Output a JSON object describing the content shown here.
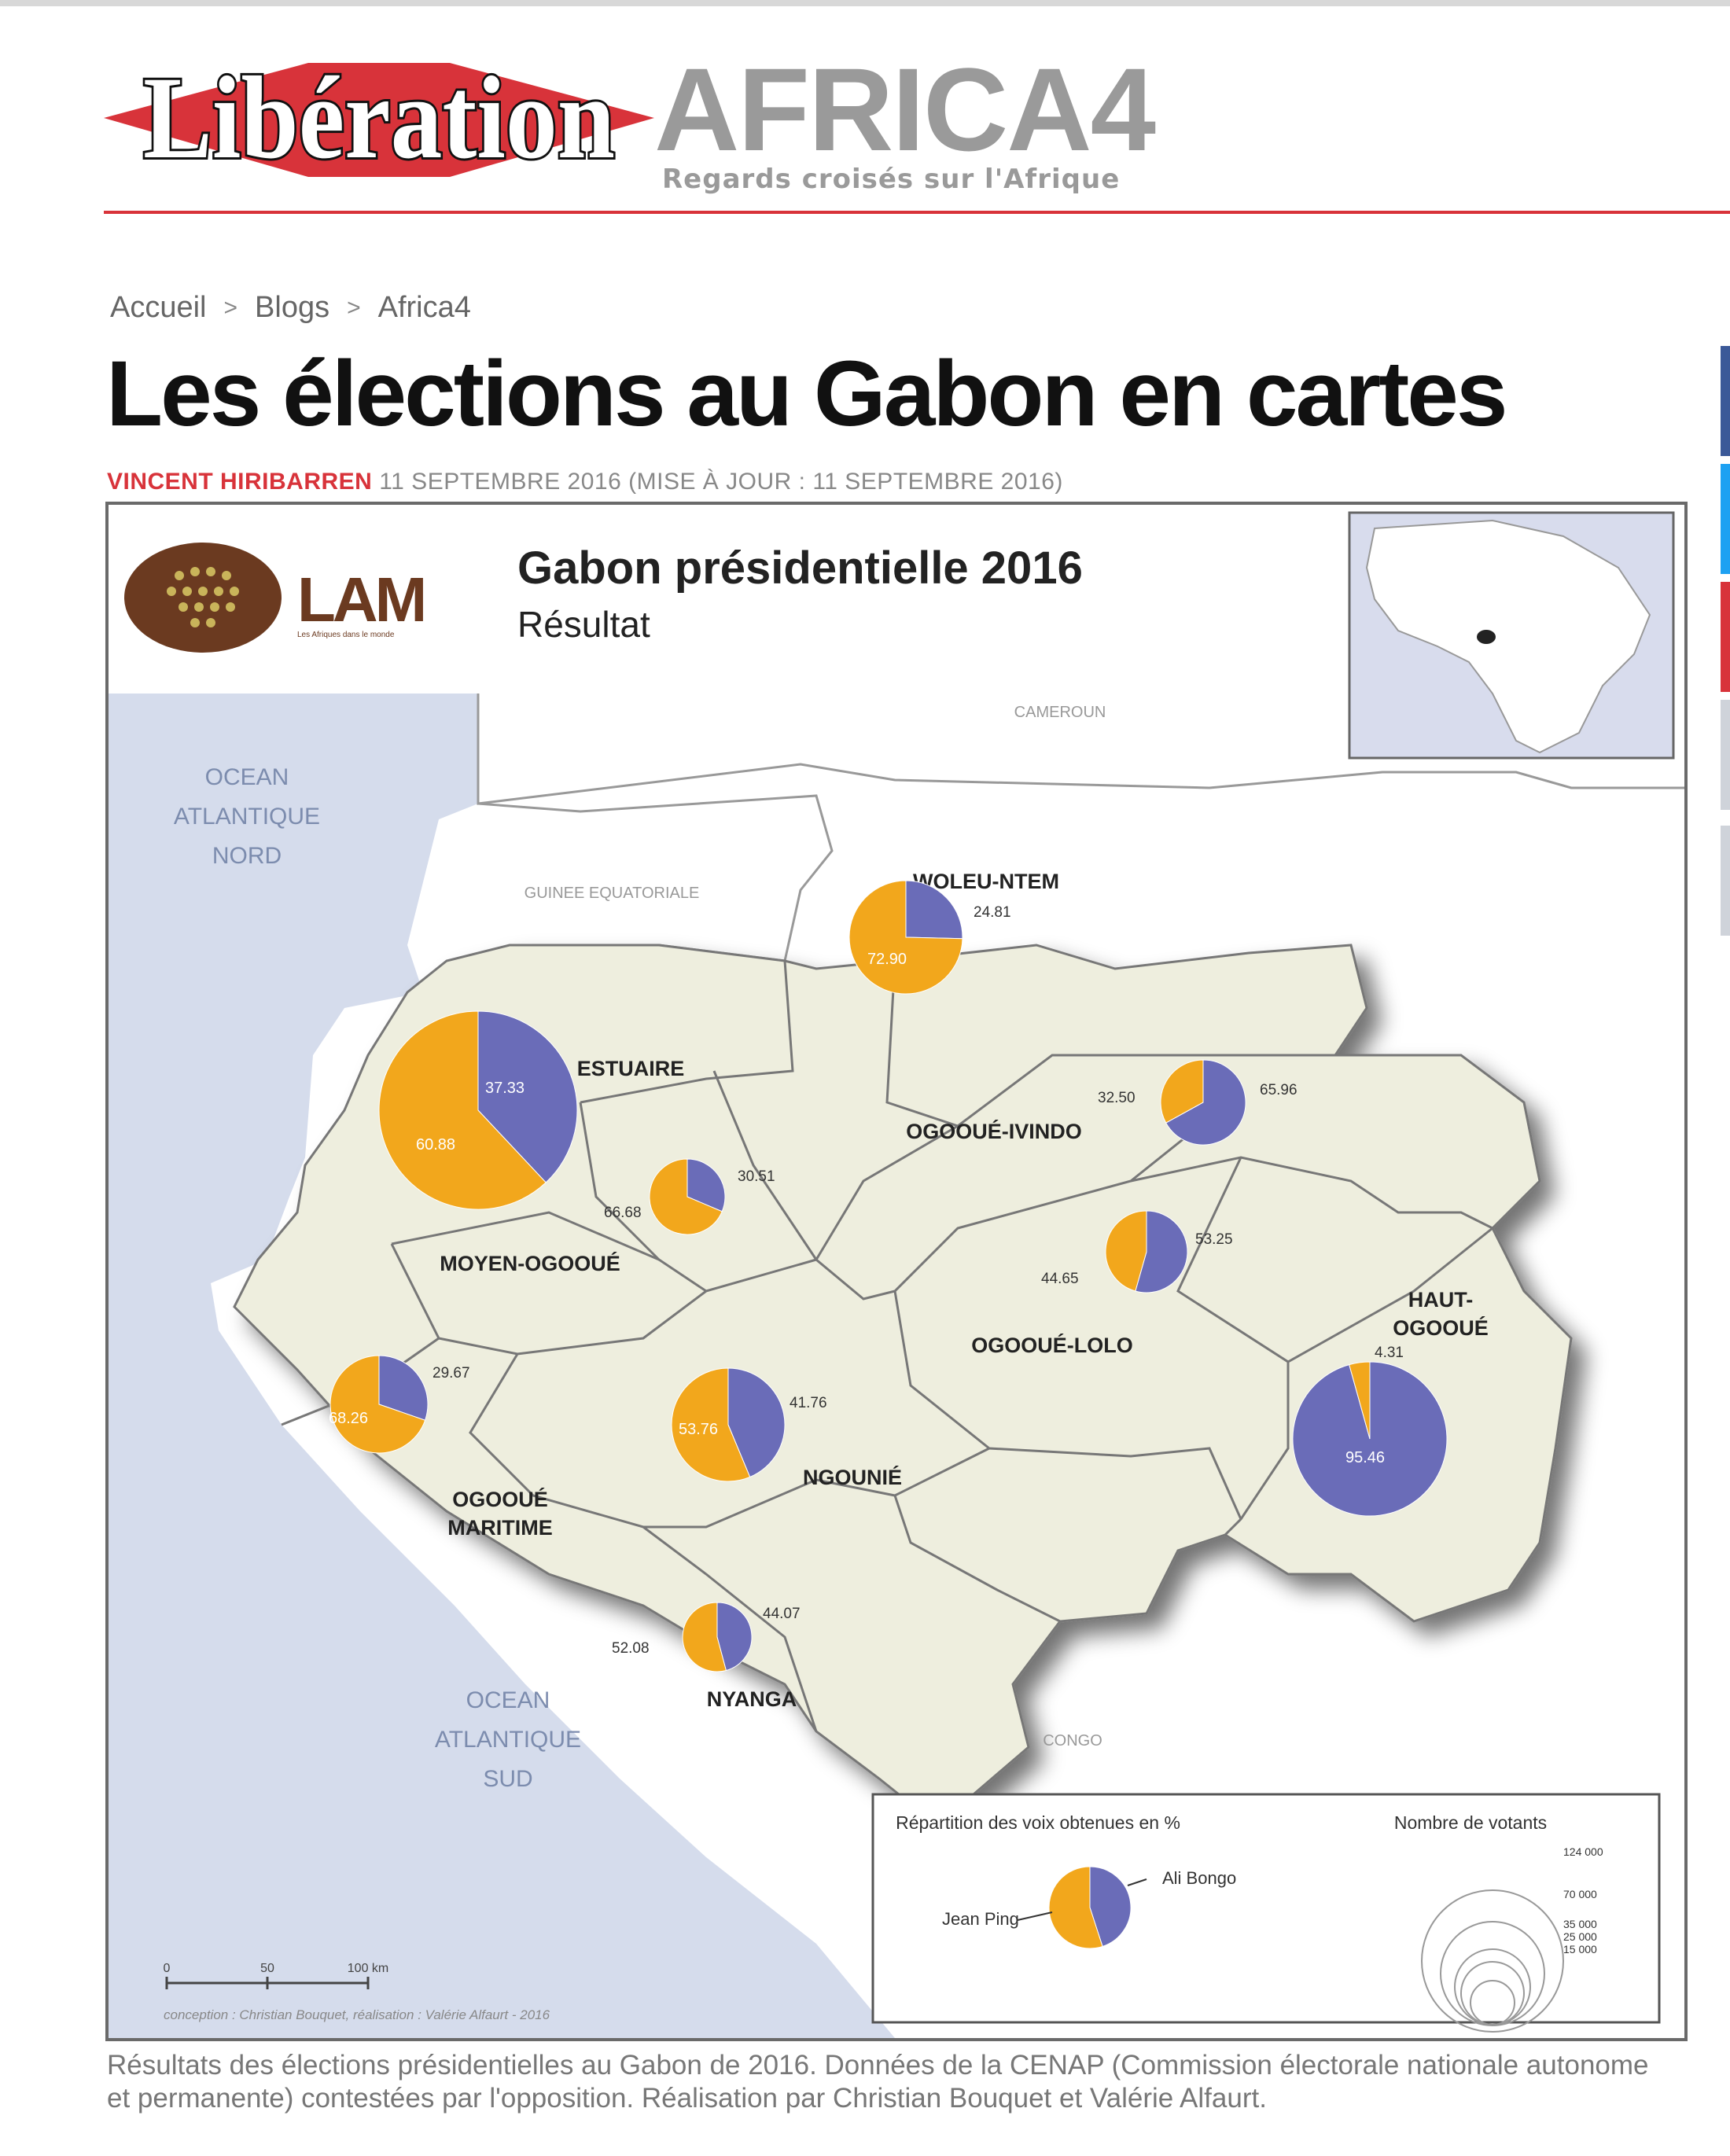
{
  "header": {
    "logo_text": "Libération",
    "section_title": "AFRICA4",
    "tagline": "Regards croisés sur l'Afrique"
  },
  "breadcrumb": {
    "items": [
      "Accueil",
      "Blogs",
      "Africa4"
    ],
    "separator": ">"
  },
  "article": {
    "title": "Les élections au Gabon en cartes",
    "author": "VINCENT HIRIBARREN",
    "date": "11 SEPTEMBRE 2016 (MISE À JOUR : 11 SEPTEMBRE 2016)",
    "caption": "Résultats des élections présidentielles au Gabon de 2016. Données de la CENAP (Commission électorale nationale autonome et permanente) contestées par l'opposition. Réalisation par Christian Bouquet et Valérie Alfaurt."
  },
  "map": {
    "logo_text": "LAM",
    "logo_subtext": "Les Afriques dans le monde",
    "title": "Gabon présidentielle 2016",
    "subtitle": "Résultat",
    "sea_north": [
      "OCEAN",
      "ATLANTIQUE",
      "NORD"
    ],
    "sea_south": [
      "OCEAN",
      "ATLANTIQUE",
      "SUD"
    ],
    "neighbors": {
      "cameroon": "CAMEROUN",
      "eq_guinea": "GUINEE EQUATORIALE",
      "congo": "CONGO"
    },
    "colors": {
      "ping": "#f2a71c",
      "bongo": "#6a6cb8",
      "land": "#eeeede",
      "sea": "#d5dcec"
    },
    "provinces": [
      {
        "name": "WOLEU-NTEM",
        "bongo": "24.81",
        "ping": "72.90"
      },
      {
        "name": "OGOOUÉ-IVINDO",
        "bongo": "65.96",
        "ping": "32.50"
      },
      {
        "name": "ESTUAIRE",
        "bongo": "37.33",
        "ping": "60.88"
      },
      {
        "name": "MOYEN-OGOOUÉ",
        "bongo": "30.51",
        "ping": "66.68"
      },
      {
        "name": "OGOOUÉ-LOLO",
        "bongo": "53.25",
        "ping": "44.65"
      },
      {
        "name": "HAUT-OGOOUÉ",
        "bongo": "95.46",
        "ping": "4.31"
      },
      {
        "name": "OGOOUÉ MARITIME",
        "bongo": "29.67",
        "ping": "68.26"
      },
      {
        "name": "NGOUNIÉ",
        "bongo": "41.76",
        "ping": "53.76"
      },
      {
        "name": "NYANGA",
        "bongo": "44.07",
        "ping": "52.08"
      }
    ],
    "legend": {
      "share_title": "Répartition des voix obtenues en %",
      "voters_title": "Nombre de votants",
      "bongo_label": "Ali Bongo",
      "ping_label": "Jean Ping",
      "voter_scale": [
        "124 000",
        "70 000",
        "35 000",
        "25 000",
        "15 000"
      ]
    },
    "scale_bar": [
      "0",
      "50",
      "100 km"
    ],
    "credits": "conception : Christian Bouquet, réalisation : Valérie Alfaurt - 2016"
  }
}
